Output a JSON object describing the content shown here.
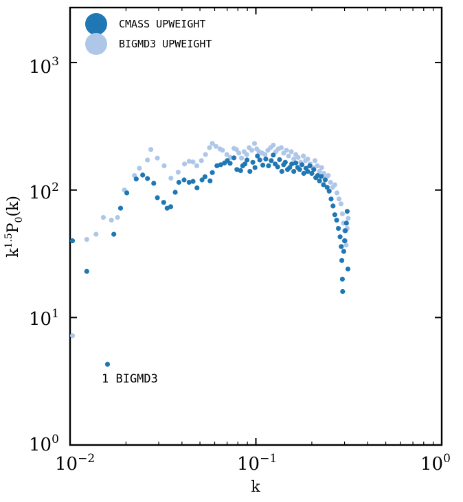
{
  "chart_data": {
    "type": "scatter",
    "x_scale": "log",
    "y_scale": "log",
    "xlabel": "k",
    "ylabel": "k^{1.5}P_0(k)",
    "xlim": [
      0.01,
      1
    ],
    "ylim": [
      1,
      2700
    ],
    "x_ticks": [
      {
        "base": "10",
        "exp": "−2",
        "value": 0.01
      },
      {
        "base": "10",
        "exp": "−1",
        "value": 0.1
      },
      {
        "base": "10",
        "exp": "0",
        "value": 1
      }
    ],
    "y_ticks": [
      {
        "base": "10",
        "exp": "0",
        "value": 1
      },
      {
        "base": "10",
        "exp": "1",
        "value": 10
      },
      {
        "base": "10",
        "exp": "2",
        "value": 100
      },
      {
        "base": "10",
        "exp": "3",
        "value": 1000
      }
    ],
    "grid": false,
    "legend_position": "top-left",
    "annotation": "1 BIGMD3",
    "series": [
      {
        "name": "CMASS UPWEIGHT",
        "color": "#1f77b4",
        "points": [
          [
            0.0103,
            40
          ],
          [
            0.0123,
            23
          ],
          [
            0.0159,
            4.3
          ],
          [
            0.0172,
            45
          ],
          [
            0.0187,
            72
          ],
          [
            0.0202,
            95
          ],
          [
            0.0227,
            122
          ],
          [
            0.0246,
            131
          ],
          [
            0.0261,
            123
          ],
          [
            0.0282,
            113
          ],
          [
            0.0295,
            87
          ],
          [
            0.0319,
            80
          ],
          [
            0.0333,
            72
          ],
          [
            0.0348,
            74
          ],
          [
            0.0368,
            96
          ],
          [
            0.0385,
            115
          ],
          [
            0.0411,
            120
          ],
          [
            0.0437,
            115
          ],
          [
            0.0459,
            117
          ],
          [
            0.0482,
            104
          ],
          [
            0.0513,
            120
          ],
          [
            0.0532,
            127
          ],
          [
            0.0567,
            118
          ],
          [
            0.0583,
            137
          ],
          [
            0.0617,
            155
          ],
          [
            0.0647,
            158
          ],
          [
            0.0678,
            163
          ],
          [
            0.0702,
            170
          ],
          [
            0.0727,
            162
          ],
          [
            0.0762,
            179
          ],
          [
            0.079,
            145
          ],
          [
            0.0828,
            142
          ],
          [
            0.0849,
            155
          ],
          [
            0.0873,
            160
          ],
          [
            0.0896,
            172
          ],
          [
            0.0929,
            140
          ],
          [
            0.0963,
            165
          ],
          [
            0.0989,
            150
          ],
          [
            0.102,
            185
          ],
          [
            0.105,
            172
          ],
          [
            0.109,
            157
          ],
          [
            0.113,
            175
          ],
          [
            0.117,
            155
          ],
          [
            0.121,
            170
          ],
          [
            0.124,
            188
          ],
          [
            0.127,
            160
          ],
          [
            0.131,
            152
          ],
          [
            0.134,
            173
          ],
          [
            0.138,
            140
          ],
          [
            0.141,
            158
          ],
          [
            0.144,
            165
          ],
          [
            0.148,
            145
          ],
          [
            0.152,
            150
          ],
          [
            0.156,
            160
          ],
          [
            0.16,
            140
          ],
          [
            0.164,
            163
          ],
          [
            0.168,
            150
          ],
          [
            0.172,
            145
          ],
          [
            0.177,
            158
          ],
          [
            0.181,
            135
          ],
          [
            0.186,
            148
          ],
          [
            0.19,
            140
          ],
          [
            0.195,
            155
          ],
          [
            0.2,
            135
          ],
          [
            0.205,
            145
          ],
          [
            0.21,
            125
          ],
          [
            0.215,
            130
          ],
          [
            0.22,
            118
          ],
          [
            0.225,
            128
          ],
          [
            0.231,
            110
          ],
          [
            0.236,
            120
          ],
          [
            0.242,
            105
          ],
          [
            0.248,
            98
          ],
          [
            0.254,
            85
          ],
          [
            0.26,
            75
          ],
          [
            0.266,
            64
          ],
          [
            0.272,
            58
          ],
          [
            0.278,
            50
          ],
          [
            0.284,
            43
          ],
          [
            0.288,
            36
          ],
          [
            0.29,
            28
          ],
          [
            0.292,
            20
          ],
          [
            0.293,
            16
          ],
          [
            0.297,
            33
          ],
          [
            0.3,
            40
          ],
          [
            0.303,
            48
          ],
          [
            0.307,
            55
          ],
          [
            0.31,
            68
          ],
          [
            0.313,
            24
          ]
        ]
      },
      {
        "name": "BIGMD3 UPWEIGHT",
        "color": "#aec7e8",
        "points": [
          [
            0.0103,
            7.2
          ],
          [
            0.0123,
            41
          ],
          [
            0.0138,
            45
          ],
          [
            0.0151,
            61
          ],
          [
            0.0167,
            58
          ],
          [
            0.018,
            61
          ],
          [
            0.0196,
            100
          ],
          [
            0.0222,
            130
          ],
          [
            0.0236,
            148
          ],
          [
            0.0261,
            172
          ],
          [
            0.0272,
            208
          ],
          [
            0.0295,
            178
          ],
          [
            0.0321,
            155
          ],
          [
            0.0349,
            124
          ],
          [
            0.0382,
            138
          ],
          [
            0.0413,
            160
          ],
          [
            0.0437,
            168
          ],
          [
            0.0459,
            166
          ],
          [
            0.0481,
            155
          ],
          [
            0.0509,
            170
          ],
          [
            0.0536,
            190
          ],
          [
            0.0563,
            215
          ],
          [
            0.0583,
            232
          ],
          [
            0.061,
            220
          ],
          [
            0.0641,
            210
          ],
          [
            0.0661,
            205
          ],
          [
            0.0698,
            190
          ],
          [
            0.0729,
            180
          ],
          [
            0.0762,
            212
          ],
          [
            0.0786,
            208
          ],
          [
            0.081,
            195
          ],
          [
            0.0837,
            178
          ],
          [
            0.0864,
            200
          ],
          [
            0.0893,
            190
          ],
          [
            0.092,
            215
          ],
          [
            0.0951,
            205
          ],
          [
            0.0983,
            232
          ],
          [
            0.101,
            210
          ],
          [
            0.104,
            200
          ],
          [
            0.108,
            195
          ],
          [
            0.112,
            190
          ],
          [
            0.116,
            205
          ],
          [
            0.12,
            215
          ],
          [
            0.124,
            225
          ],
          [
            0.128,
            200
          ],
          [
            0.132,
            210
          ],
          [
            0.137,
            215
          ],
          [
            0.141,
            195
          ],
          [
            0.146,
            205
          ],
          [
            0.15,
            185
          ],
          [
            0.155,
            200
          ],
          [
            0.16,
            175
          ],
          [
            0.164,
            190
          ],
          [
            0.169,
            180
          ],
          [
            0.174,
            165
          ],
          [
            0.18,
            185
          ],
          [
            0.185,
            170
          ],
          [
            0.19,
            175
          ],
          [
            0.196,
            160
          ],
          [
            0.202,
            150
          ],
          [
            0.208,
            170
          ],
          [
            0.214,
            155
          ],
          [
            0.22,
            140
          ],
          [
            0.226,
            150
          ],
          [
            0.232,
            135
          ],
          [
            0.239,
            125
          ],
          [
            0.245,
            130
          ],
          [
            0.252,
            115
          ],
          [
            0.259,
            105
          ],
          [
            0.266,
            110
          ],
          [
            0.273,
            95
          ],
          [
            0.28,
            85
          ],
          [
            0.287,
            78
          ],
          [
            0.292,
            65
          ],
          [
            0.296,
            55
          ],
          [
            0.3,
            48
          ],
          [
            0.303,
            40
          ],
          [
            0.306,
            37
          ],
          [
            0.31,
            50
          ],
          [
            0.314,
            60
          ]
        ]
      }
    ]
  }
}
